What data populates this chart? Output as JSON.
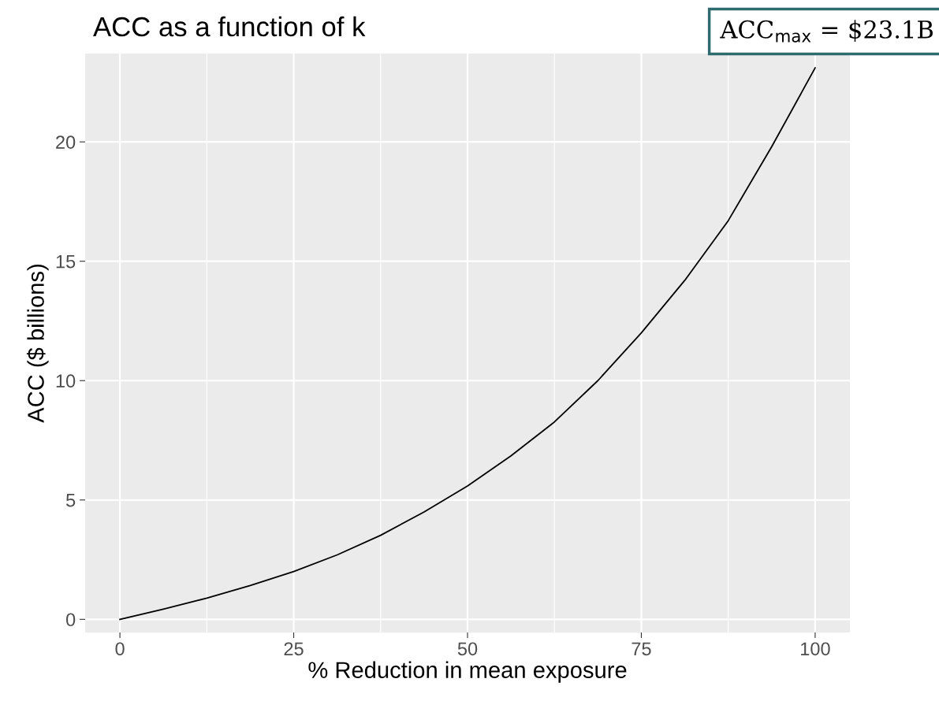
{
  "chart_data": {
    "type": "line",
    "title": "ACC as a function of k",
    "xlabel": "% Reduction in mean exposure",
    "ylabel": "ACC ($ billions)",
    "annotations": [
      "ACC$_{max}$ = $23.1B"
    ],
    "x": [
      0,
      6.25,
      12.5,
      18.75,
      25,
      31.25,
      37.5,
      43.75,
      50,
      56.25,
      62.5,
      68.75,
      75,
      81.25,
      87.5,
      93.75,
      100
    ],
    "series": [
      {
        "color": "#000000",
        "values": [
          0,
          0.43,
          0.89,
          1.42,
          2.0,
          2.7,
          3.52,
          4.5,
          5.59,
          6.85,
          8.27,
          10.0,
          12.0,
          14.2,
          16.7,
          19.8,
          23.1
        ]
      }
    ],
    "xlim": [
      -5,
      105
    ],
    "ylim": [
      -0.55,
      23.7
    ],
    "xticks": [
      0,
      25,
      50,
      75,
      100
    ],
    "yticks": [
      0,
      5,
      10,
      15,
      20
    ],
    "grid": true
  }
}
